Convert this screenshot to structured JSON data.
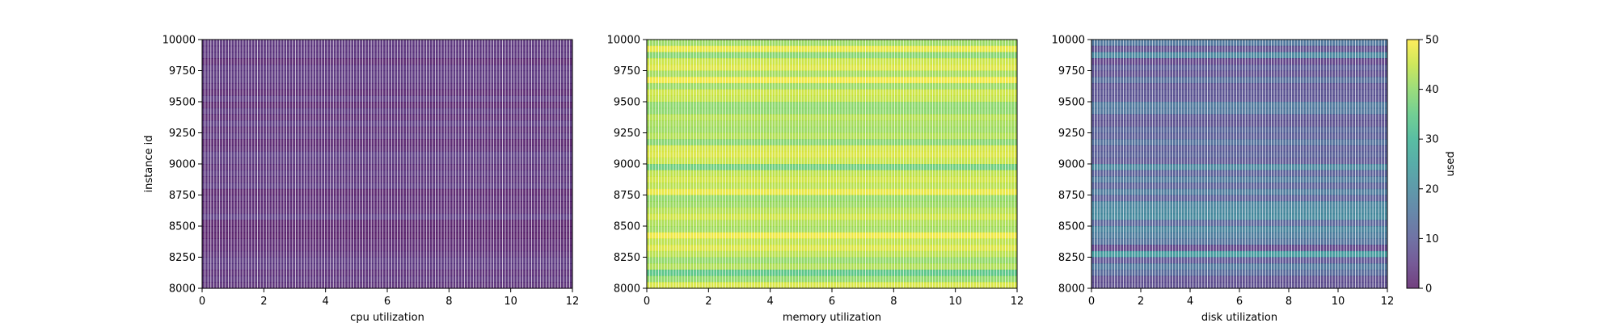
{
  "chart_data": [
    {
      "type": "heatmap",
      "xlabel": "cpu utilization",
      "ylabel": "instance id",
      "xlim": [
        0,
        12
      ],
      "ylim": [
        8000,
        10000
      ],
      "xticks": [
        "0",
        "2",
        "4",
        "6",
        "8",
        "10",
        "12"
      ],
      "yticks": [
        "8000",
        "8250",
        "8500",
        "8750",
        "9000",
        "9250",
        "9500",
        "9750",
        "10000"
      ],
      "typical_value": 3,
      "value_range": [
        0,
        8
      ]
    },
    {
      "type": "heatmap",
      "xlabel": "memory utilization",
      "ylabel": "",
      "xlim": [
        0,
        12
      ],
      "ylim": [
        8000,
        10000
      ],
      "xticks": [
        "0",
        "2",
        "4",
        "6",
        "8",
        "10",
        "12"
      ],
      "yticks": [
        "8000",
        "8250",
        "8500",
        "8750",
        "9000",
        "9250",
        "9500",
        "9750",
        "10000"
      ],
      "typical_value": 44,
      "value_range": [
        32,
        50
      ]
    },
    {
      "type": "heatmap",
      "xlabel": "disk utilization",
      "ylabel": "",
      "xlim": [
        0,
        12
      ],
      "ylim": [
        8000,
        10000
      ],
      "xticks": [
        "0",
        "2",
        "4",
        "6",
        "8",
        "10",
        "12"
      ],
      "yticks": [
        "8000",
        "8250",
        "8500",
        "8750",
        "9000",
        "9250",
        "9500",
        "9750",
        "10000"
      ],
      "typical_value": 12,
      "value_range": [
        4,
        34
      ]
    }
  ],
  "colorbar": {
    "label": "used",
    "range": [
      0,
      50
    ],
    "ticks": [
      "0",
      "10",
      "20",
      "30",
      "40",
      "50"
    ],
    "colormap": "viridis"
  }
}
